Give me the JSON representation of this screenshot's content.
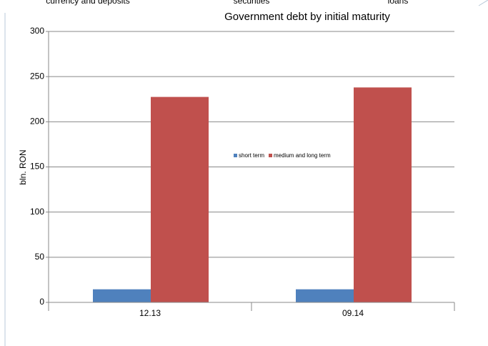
{
  "chart_data": {
    "type": "bar",
    "title": "Government debt by initial maturity",
    "annotations": [
      "currency and deposits",
      "securities",
      "loans"
    ],
    "ylabel": "bln. RON",
    "categories": [
      "12.13",
      "09.14"
    ],
    "series": [
      {
        "name": "short term",
        "color": "#4f81bd",
        "values": [
          14.5,
          14.5
        ]
      },
      {
        "name": "medium and long term",
        "color": "#c0504d",
        "values": [
          227.5,
          238
        ]
      }
    ],
    "ylim": [
      0,
      300
    ],
    "yticks": [
      0,
      50,
      100,
      150,
      200,
      250,
      300
    ],
    "grid": true,
    "legend": "center"
  }
}
